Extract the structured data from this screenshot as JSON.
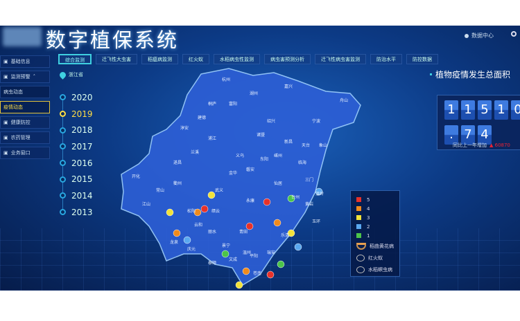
{
  "header": {
    "title": "数字植保系统",
    "data_center": "数据中心"
  },
  "tabs": [
    {
      "label": "综合监测",
      "active": true
    },
    {
      "label": "迁飞性大虫害"
    },
    {
      "label": "稻瘟病监测"
    },
    {
      "label": "红火蚁"
    },
    {
      "label": "水稻病虫性监测"
    },
    {
      "label": "病虫害预测分析"
    },
    {
      "label": "迁飞性病虫害监测"
    },
    {
      "label": "防治水平"
    },
    {
      "label": "防控数据"
    }
  ],
  "sidebar": [
    {
      "label": "基础信息"
    },
    {
      "label": "监测预警",
      "expanded": true
    },
    {
      "label": "病虫动态",
      "sub": true
    },
    {
      "label": "疫情动态",
      "sub": true,
      "selected": true
    },
    {
      "label": "健康防控"
    },
    {
      "label": "农药管理"
    },
    {
      "label": "业务窗口"
    }
  ],
  "location": "浙江省",
  "years": [
    {
      "label": "2020"
    },
    {
      "label": "2019",
      "selected": true
    },
    {
      "label": "2018"
    },
    {
      "label": "2017"
    },
    {
      "label": "2016"
    },
    {
      "label": "2015"
    },
    {
      "label": "2014"
    },
    {
      "label": "2013"
    }
  ],
  "stats": {
    "title": "植物疫情发生总面积",
    "digits": [
      "1",
      "1",
      "5",
      "1",
      "0",
      ".",
      "7",
      "4"
    ],
    "compare_label": "同比上一年增加",
    "compare_value": "60870"
  },
  "legend": {
    "levels": [
      {
        "label": "5",
        "color": "#e8322a"
      },
      {
        "label": "4",
        "color": "#f08a1c"
      },
      {
        "label": "3",
        "color": "#f2e23a"
      },
      {
        "label": "2",
        "color": "#5aa8f0"
      },
      {
        "label": "1",
        "color": "#4cc44a"
      }
    ],
    "icons": [
      {
        "label": "稻曲黄花病",
        "icon": "bowl-icon"
      },
      {
        "label": "红火蚁",
        "icon": "ant-icon"
      },
      {
        "label": "水稻螟虫病",
        "icon": "insect-icon"
      }
    ]
  },
  "map_labels": [
    "杭州",
    "湖州",
    "嘉兴",
    "绍兴",
    "宁波",
    "舟山",
    "金华",
    "衢州",
    "丽水",
    "温州",
    "台州",
    "开化",
    "江山",
    "龙泉",
    "文成",
    "庆元",
    "常山",
    "武义",
    "永康",
    "义乌",
    "诸暨",
    "新昌",
    "象山",
    "三门",
    "临海",
    "仙居",
    "缙云",
    "云和",
    "景宁",
    "泰顺",
    "平阳",
    "苍南",
    "淳安",
    "建德",
    "桐庐",
    "富阳",
    "嵊州",
    "天台",
    "黄岩",
    "温岭",
    "玉环",
    "乐清",
    "瑞安",
    "青田",
    "松阳",
    "遂昌",
    "磐安",
    "东阳",
    "兰溪",
    "浦江"
  ]
}
